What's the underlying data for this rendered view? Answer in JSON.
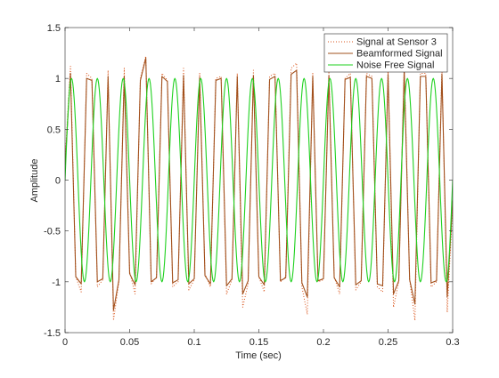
{
  "chart_data": {
    "type": "line",
    "title": "",
    "xlabel": "Time (sec)",
    "ylabel": "Amplitude",
    "xlim": [
      0,
      0.3
    ],
    "ylim": [
      -1.5,
      1.5
    ],
    "xticks": [
      0,
      0.05,
      0.1,
      0.15,
      0.2,
      0.25,
      0.3
    ],
    "xtick_labels": [
      "0",
      "0.05",
      "0.1",
      "0.15",
      "0.2",
      "0.25",
      "0.3"
    ],
    "yticks": [
      -1.5,
      -1,
      -0.5,
      0,
      0.5,
      1,
      1.5
    ],
    "ytick_labels": [
      "-1.5",
      "-1",
      "-0.5",
      "0",
      "0.5",
      "1",
      "1.5"
    ],
    "grid": false,
    "legend_position": "top-right",
    "series": [
      {
        "name": "Signal at Sensor 3",
        "color": "#d95319",
        "style": "dotted",
        "x": [
          0,
          0.0042,
          0.0083,
          0.0125,
          0.0167,
          0.0208,
          0.025,
          0.0292,
          0.0333,
          0.0375,
          0.0417,
          0.0458,
          0.05,
          0.0542,
          0.0583,
          0.0625,
          0.0667,
          0.0708,
          0.075,
          0.0792,
          0.0833,
          0.0875,
          0.0917,
          0.0958,
          0.1,
          0.1042,
          0.1083,
          0.1125,
          0.1167,
          0.1208,
          0.125,
          0.1292,
          0.1333,
          0.1375,
          0.1417,
          0.1458,
          0.15,
          0.1542,
          0.1583,
          0.1625,
          0.1667,
          0.1708,
          0.175,
          0.1792,
          0.1833,
          0.1875,
          0.1917,
          0.1958,
          0.2,
          0.2042,
          0.2083,
          0.2125,
          0.2167,
          0.2208,
          0.225,
          0.2292,
          0.2333,
          0.2375,
          0.2417,
          0.2458,
          0.25,
          0.2542,
          0.2583,
          0.2625,
          0.2667,
          0.2708,
          0.275,
          0.2792,
          0.2833,
          0.2875,
          0.2917,
          0.2958,
          0.3
        ],
        "y": [
          0.2,
          1.12,
          -0.95,
          -1.1,
          1.05,
          1.0,
          -1.05,
          -0.98,
          1.08,
          -1.38,
          -1.0,
          1.1,
          -0.9,
          -1.12,
          1.0,
          1.22,
          -1.02,
          -0.95,
          1.05,
          0.98,
          -1.05,
          -1.0,
          1.1,
          -1.08,
          -0.98,
          1.05,
          -0.92,
          -1.05,
          1.0,
          1.02,
          -1.12,
          -0.98,
          1.05,
          -1.25,
          -1.02,
          1.08,
          -0.95,
          -1.1,
          1.02,
          1.05,
          -1.0,
          -0.95,
          1.1,
          1.15,
          -1.05,
          -1.32,
          1.05,
          -1.0,
          -0.98,
          1.08,
          -0.95,
          -1.12,
          1.0,
          1.05,
          -1.08,
          -1.0,
          1.05,
          1.02,
          -1.05,
          -1.1,
          1.08,
          -1.25,
          -1.0,
          1.12,
          -0.98,
          -1.38,
          1.05,
          1.05,
          -1.05,
          -1.0,
          1.1,
          -1.3,
          -0.25
        ]
      },
      {
        "name": "Beamformed Signal",
        "color": "#a2501c",
        "style": "solid",
        "x": [
          0,
          0.0042,
          0.0083,
          0.0125,
          0.0167,
          0.0208,
          0.025,
          0.0292,
          0.0333,
          0.0375,
          0.0417,
          0.0458,
          0.05,
          0.0542,
          0.0583,
          0.0625,
          0.0667,
          0.0708,
          0.075,
          0.0792,
          0.0833,
          0.0875,
          0.0917,
          0.0958,
          0.1,
          0.1042,
          0.1083,
          0.1125,
          0.1167,
          0.1208,
          0.125,
          0.1292,
          0.1333,
          0.1375,
          0.1417,
          0.1458,
          0.15,
          0.1542,
          0.1583,
          0.1625,
          0.1667,
          0.1708,
          0.175,
          0.1792,
          0.1833,
          0.1875,
          0.1917,
          0.1958,
          0.2,
          0.2042,
          0.2083,
          0.2125,
          0.2167,
          0.2208,
          0.225,
          0.2292,
          0.2333,
          0.2375,
          0.2417,
          0.2458,
          0.25,
          0.2542,
          0.2583,
          0.2625,
          0.2667,
          0.2708,
          0.275,
          0.2792,
          0.2833,
          0.2875,
          0.2917,
          0.2958,
          0.3
        ],
        "y": [
          0.15,
          1.05,
          -0.95,
          -1.02,
          1.0,
          0.98,
          -1.0,
          -0.97,
          1.02,
          -1.28,
          -0.98,
          1.02,
          -0.92,
          -1.03,
          0.98,
          1.2,
          -1.0,
          -0.96,
          1.02,
          0.97,
          -1.01,
          -0.98,
          1.03,
          -1.02,
          -0.97,
          1.01,
          -0.94,
          -1.02,
          0.98,
          1.0,
          -1.04,
          -0.97,
          1.02,
          -1.12,
          -0.99,
          1.03,
          -0.95,
          -1.03,
          0.99,
          1.02,
          -0.99,
          -0.96,
          1.04,
          1.08,
          -1.01,
          -1.15,
          1.02,
          -0.99,
          -0.97,
          1.03,
          -0.96,
          -1.05,
          0.99,
          1.01,
          -1.03,
          -0.99,
          1.02,
          1.0,
          -1.02,
          -1.04,
          1.04,
          -1.12,
          -0.99,
          1.08,
          -0.98,
          -1.22,
          1.02,
          1.02,
          -1.01,
          -0.99,
          1.04,
          -1.15,
          -0.2
        ]
      },
      {
        "name": "Noise Free Signal",
        "color": "#1fd11f",
        "style": "solid",
        "frequency_hz": 50,
        "amplitude": 1.0
      }
    ]
  }
}
